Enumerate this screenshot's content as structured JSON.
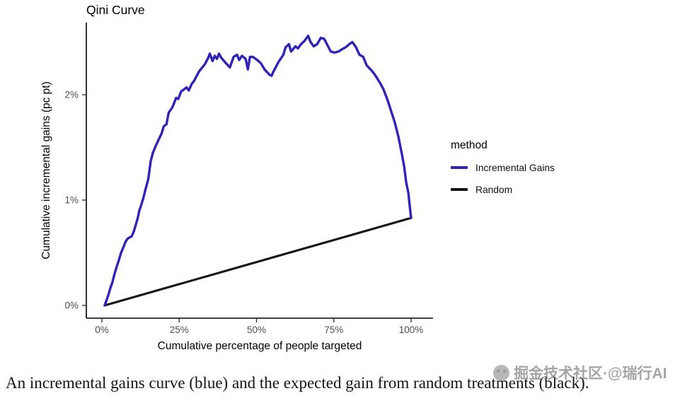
{
  "page": {
    "caption": "An incremental gains curve (blue) and the expected gain from random treatments (black).",
    "watermark_text": "掘金技术社区·@瑞行AI"
  },
  "colors": {
    "incremental_blue": "#2F23B8",
    "random_black": "#141414",
    "tick_text": "#4D4D4D",
    "axis_line": "#000000"
  },
  "chart_data": {
    "type": "line",
    "title": "Qini Curve",
    "xlabel": "Cumulative percentage of people targeted",
    "ylabel": "Cumulative incremental gains (pc pt)",
    "xlim": [
      0,
      100
    ],
    "ylim": [
      0,
      2.68
    ],
    "grid": false,
    "legend_position": "right",
    "legend_title": "method",
    "x_ticks": [
      {
        "v": 0,
        "label": "0%"
      },
      {
        "v": 25,
        "label": "25%"
      },
      {
        "v": 50,
        "label": "50%"
      },
      {
        "v": 75,
        "label": "75%"
      },
      {
        "v": 100,
        "label": "100%"
      }
    ],
    "y_ticks": [
      {
        "v": 0,
        "label": "0%"
      },
      {
        "v": 1,
        "label": "1%"
      },
      {
        "v": 2,
        "label": "2%"
      }
    ],
    "series": [
      {
        "name": "Incremental Gains",
        "color": "#2F23B8",
        "x": [
          0.9,
          1.5,
          2.1,
          2.8,
          3.4,
          4.1,
          4.8,
          5.5,
          6.2,
          6.9,
          7.6,
          8.2,
          8.9,
          9.6,
          10.3,
          11.0,
          11.6,
          12.1,
          12.8,
          13.4,
          14.1,
          15.0,
          15.8,
          16.5,
          17.5,
          18.6,
          19.3,
          20.0,
          20.9,
          21.6,
          22.8,
          24.0,
          24.7,
          25.6,
          26.5,
          27.4,
          28.1,
          29.0,
          29.8,
          31.4,
          33.3,
          34.4,
          34.9,
          35.8,
          36.5,
          37.2,
          37.9,
          38.6,
          39.8,
          41.4,
          42.6,
          43.7,
          44.4,
          45.3,
          46.5,
          47.2,
          47.9,
          48.8,
          50.2,
          51.4,
          52.6,
          54.2,
          54.9,
          55.3,
          56.2,
          57.1,
          58.7,
          59.4,
          60.5,
          61.2,
          62.6,
          63.4,
          64.4,
          65.5,
          66.7,
          67.5,
          68.5,
          69.6,
          70.8,
          71.9,
          72.8,
          74.0,
          75.2,
          76.5,
          77.6,
          78.8,
          80.0,
          81.0,
          82.2,
          83.3,
          84.5,
          85.6,
          87.2,
          88.3,
          90.0,
          91.1,
          92.5,
          93.6,
          94.7,
          95.9,
          97.0,
          97.8,
          98.4,
          99.1,
          99.6,
          100.0
        ],
        "y": [
          0.0,
          0.05,
          0.1,
          0.17,
          0.22,
          0.3,
          0.37,
          0.43,
          0.5,
          0.55,
          0.6,
          0.63,
          0.645,
          0.655,
          0.7,
          0.77,
          0.83,
          0.9,
          0.96,
          1.02,
          1.1,
          1.2,
          1.37,
          1.45,
          1.52,
          1.59,
          1.63,
          1.7,
          1.72,
          1.83,
          1.88,
          1.97,
          1.96,
          2.03,
          2.05,
          2.07,
          2.04,
          2.1,
          2.13,
          2.22,
          2.29,
          2.35,
          2.39,
          2.32,
          2.37,
          2.34,
          2.39,
          2.35,
          2.31,
          2.26,
          2.36,
          2.38,
          2.33,
          2.37,
          2.34,
          2.24,
          2.36,
          2.36,
          2.33,
          2.3,
          2.24,
          2.19,
          2.18,
          2.21,
          2.26,
          2.31,
          2.38,
          2.45,
          2.48,
          2.41,
          2.46,
          2.44,
          2.48,
          2.51,
          2.56,
          2.5,
          2.46,
          2.48,
          2.54,
          2.53,
          2.48,
          2.41,
          2.4,
          2.41,
          2.43,
          2.45,
          2.48,
          2.5,
          2.45,
          2.38,
          2.36,
          2.28,
          2.23,
          2.19,
          2.11,
          2.05,
          1.94,
          1.84,
          1.74,
          1.6,
          1.44,
          1.31,
          1.17,
          1.07,
          0.93,
          0.83
        ]
      },
      {
        "name": "Random",
        "color": "#141414",
        "x": [
          0.9,
          100.0
        ],
        "y": [
          0.0,
          0.83
        ]
      }
    ]
  }
}
